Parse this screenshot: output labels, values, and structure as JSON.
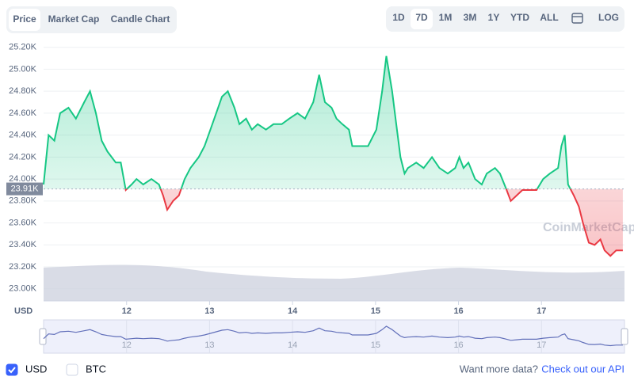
{
  "ui": {
    "tabs": [
      "Price",
      "Market Cap",
      "Candle Chart"
    ],
    "active_tab": 0,
    "ranges": [
      "1D",
      "7D",
      "1M",
      "3M",
      "1Y",
      "YTD",
      "ALL"
    ],
    "active_range": 1,
    "log_button": "LOG",
    "watermark": "CoinMarketCap",
    "currencies": [
      {
        "label": "USD",
        "checked": true
      },
      {
        "label": "BTC",
        "checked": false
      }
    ],
    "footer_text": "Want more data?",
    "footer_link": "Check out our API"
  },
  "chart_data": {
    "type": "line",
    "y_unit": "USD",
    "x": [
      11.0,
      11.06,
      11.13,
      11.2,
      11.3,
      11.39,
      11.49,
      11.56,
      11.63,
      11.7,
      11.77,
      11.87,
      11.93,
      11.99,
      12.06,
      12.12,
      12.2,
      12.3,
      12.39,
      12.44,
      12.49,
      12.56,
      12.63,
      12.7,
      12.77,
      12.87,
      12.94,
      13.01,
      13.08,
      13.15,
      13.22,
      13.3,
      13.36,
      13.44,
      13.51,
      13.58,
      13.68,
      13.77,
      13.87,
      13.96,
      14.06,
      14.15,
      14.25,
      14.32,
      14.39,
      14.47,
      14.53,
      14.6,
      14.68,
      14.72,
      14.82,
      14.91,
      15.01,
      15.08,
      15.13,
      15.2,
      15.25,
      15.3,
      15.35,
      15.39,
      15.49,
      15.58,
      15.68,
      15.77,
      15.87,
      15.96,
      16.01,
      16.06,
      16.12,
      16.2,
      16.28,
      16.34,
      16.44,
      16.5,
      16.58,
      16.63,
      16.7,
      16.77,
      16.87,
      16.94,
      17.02,
      17.1,
      17.2,
      17.24,
      17.28,
      17.32,
      17.39,
      17.45,
      17.5,
      17.57,
      17.64,
      17.71,
      17.76,
      17.83,
      17.9,
      17.98
    ],
    "series": [
      {
        "name": "Price",
        "color_up": "#16c784",
        "color_down": "#ea3943",
        "values": [
          23950,
          24400,
          24350,
          24600,
          24650,
          24550,
          24700,
          24800,
          24600,
          24350,
          24250,
          24150,
          24150,
          23900,
          23950,
          24000,
          23950,
          24000,
          23950,
          23850,
          23720,
          23800,
          23850,
          24000,
          24100,
          24200,
          24300,
          24450,
          24600,
          24750,
          24800,
          24650,
          24500,
          24550,
          24450,
          24500,
          24450,
          24500,
          24500,
          24550,
          24600,
          24550,
          24700,
          24950,
          24700,
          24650,
          24550,
          24500,
          24450,
          24300,
          24300,
          24300,
          24450,
          24800,
          25120,
          24800,
          24500,
          24200,
          24050,
          24100,
          24150,
          24100,
          24200,
          24100,
          24050,
          24100,
          24200,
          24100,
          24150,
          24000,
          23950,
          24050,
          24100,
          24050,
          23900,
          23800,
          23850,
          23900,
          23900,
          23900,
          24000,
          24050,
          24100,
          24300,
          24400,
          23950,
          23850,
          23750,
          23600,
          23420,
          23400,
          23450,
          23350,
          23300,
          23350,
          23350
        ]
      }
    ],
    "ref_price": {
      "value": 23910,
      "label": "23.91K"
    },
    "xlim": [
      11.0,
      18.0
    ],
    "xticks": [
      12,
      13,
      14,
      15,
      16,
      17
    ],
    "ylim": [
      22890,
      25270
    ],
    "yticks": [
      {
        "value": 23000,
        "label": "23.00K"
      },
      {
        "value": 23200,
        "label": "23.20K"
      },
      {
        "value": 23400,
        "label": "23.40K"
      },
      {
        "value": 23600,
        "label": "23.60K"
      },
      {
        "value": 23800,
        "label": "23.80K"
      },
      {
        "value": 24000,
        "label": "24.00K"
      },
      {
        "value": 24200,
        "label": "24.20K"
      },
      {
        "value": 24400,
        "label": "24.40K"
      },
      {
        "value": 24600,
        "label": "24.60K"
      },
      {
        "value": 24800,
        "label": "24.80K"
      },
      {
        "value": 25000,
        "label": "25.00K"
      },
      {
        "value": 25200,
        "label": "25.20K"
      }
    ],
    "grid": true
  }
}
